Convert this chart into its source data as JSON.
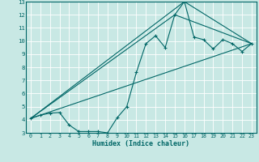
{
  "xlabel": "Humidex (Indice chaleur)",
  "xlim": [
    -0.5,
    23.5
  ],
  "ylim": [
    3,
    13
  ],
  "xticks": [
    0,
    1,
    2,
    3,
    4,
    5,
    6,
    7,
    8,
    9,
    10,
    11,
    12,
    13,
    14,
    15,
    16,
    17,
    18,
    19,
    20,
    21,
    22,
    23
  ],
  "yticks": [
    3,
    4,
    5,
    6,
    7,
    8,
    9,
    10,
    11,
    12,
    13
  ],
  "bg_color": "#c8e8e4",
  "grid_color": "#ffffff",
  "line_color": "#006666",
  "line1_x": [
    0,
    1,
    2,
    3,
    4,
    5,
    6,
    7,
    8,
    9,
    10,
    11,
    12,
    13,
    14,
    15,
    16,
    17,
    18,
    19,
    20,
    21,
    22,
    23
  ],
  "line1_y": [
    4.1,
    4.35,
    4.5,
    4.55,
    3.6,
    3.1,
    3.1,
    3.1,
    3.0,
    4.15,
    5.0,
    7.6,
    9.8,
    10.4,
    9.5,
    12.0,
    13.0,
    10.3,
    10.1,
    9.4,
    10.1,
    9.8,
    9.2,
    9.8
  ],
  "line2_x": [
    0,
    23
  ],
  "line2_y": [
    4.1,
    9.8
  ],
  "line3_x": [
    0,
    15,
    23
  ],
  "line3_y": [
    4.1,
    12.0,
    9.8
  ],
  "line4_x": [
    0,
    16,
    23
  ],
  "line4_y": [
    4.1,
    13.0,
    9.8
  ]
}
